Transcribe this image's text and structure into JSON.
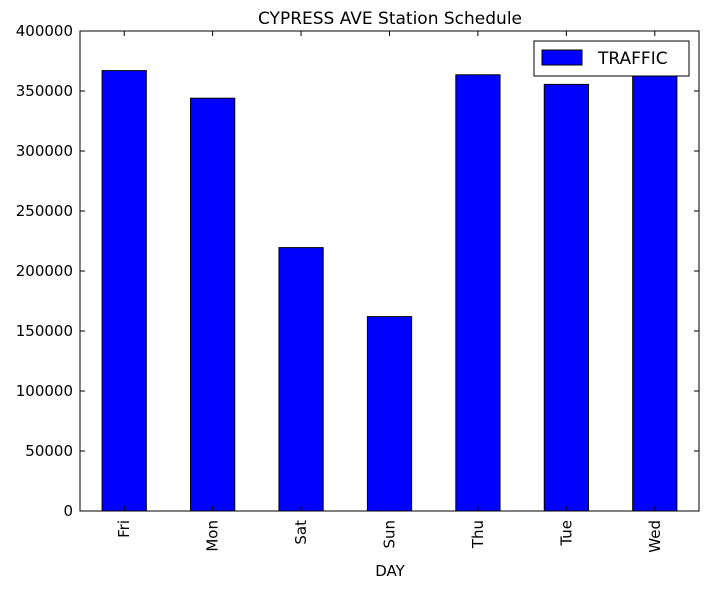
{
  "chart_data": {
    "type": "bar",
    "title": "CYPRESS AVE Station Schedule",
    "xlabel": "DAY",
    "ylabel": "",
    "categories": [
      "Fri",
      "Mon",
      "Sat",
      "Sun",
      "Thu",
      "Tue",
      "Wed"
    ],
    "series": [
      {
        "name": "TRAFFIC",
        "values": [
          367000,
          344000,
          219500,
          162000,
          363500,
          355500,
          362500
        ],
        "color": "#0000ff"
      }
    ],
    "ylim": [
      0,
      400000
    ],
    "yticks": [
      0,
      50000,
      100000,
      150000,
      200000,
      250000,
      300000,
      350000,
      400000
    ],
    "ytick_labels": [
      "0",
      "50000",
      "100000",
      "150000",
      "200000",
      "250000",
      "300000",
      "350000",
      "400000"
    ],
    "legend_position": "top-right",
    "grid": false
  }
}
